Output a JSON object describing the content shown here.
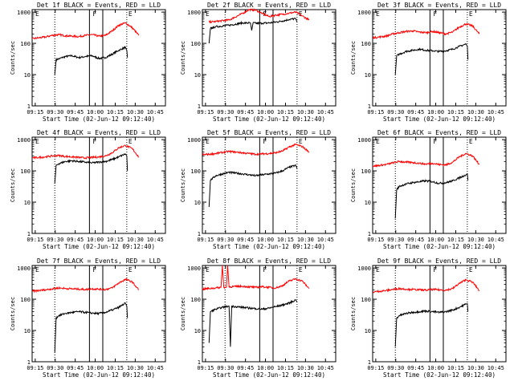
{
  "colors": {
    "events": "#000000",
    "lld": "#ff0000",
    "axis": "#000000",
    "background": "#ffffff"
  },
  "common": {
    "x_label": "Start Time (02-Jun-12 09:12:40)",
    "y_label": "Counts/sec",
    "x_ticks": [
      "09:15",
      "09:30",
      "09:45",
      "10:00",
      "10:15",
      "10:30",
      "10:45"
    ],
    "y_ticks": [
      "1",
      "10",
      "100",
      "1000"
    ],
    "markers": [
      "E",
      "F",
      "E"
    ]
  },
  "chart_data": [
    {
      "type": "line",
      "title": "Det 1f BLACK = Events, RED = LLD",
      "x_unit": "minutes after 09:12:40",
      "xlim": [
        0,
        100
      ],
      "ylim": [
        1,
        1200
      ],
      "y_scale": "log",
      "vlines_dotted": [
        17,
        71
      ],
      "vlines_solid": [
        43,
        53
      ],
      "series": [
        {
          "name": "Events",
          "color": "#000000",
          "x": [
            17,
            18,
            20,
            25,
            30,
            35,
            40,
            45,
            50,
            55,
            60,
            65,
            70,
            71,
            71.5
          ],
          "y": [
            10,
            30,
            32,
            38,
            40,
            35,
            38,
            40,
            33,
            35,
            45,
            60,
            75,
            60,
            35
          ]
        },
        {
          "name": "LLD",
          "color": "#ff0000",
          "x": [
            0,
            5,
            10,
            15,
            20,
            25,
            30,
            35,
            40,
            45,
            50,
            55,
            60,
            65,
            70,
            75,
            80
          ],
          "y": [
            140,
            150,
            160,
            180,
            190,
            175,
            170,
            165,
            180,
            190,
            170,
            180,
            250,
            380,
            450,
            320,
            180
          ]
        }
      ]
    },
    {
      "type": "line",
      "title": "Det 2f BLACK = Events, RED = LLD",
      "x_unit": "minutes after 09:12:40",
      "xlim": [
        0,
        100
      ],
      "ylim": [
        1,
        1200
      ],
      "y_scale": "log",
      "vlines_dotted": [
        17,
        71
      ],
      "vlines_solid": [
        43,
        53
      ],
      "series": [
        {
          "name": "Events",
          "color": "#000000",
          "x": [
            5,
            6,
            10,
            20,
            30,
            36,
            37,
            38,
            40,
            45,
            50,
            55,
            60,
            65,
            70,
            71
          ],
          "y": [
            100,
            300,
            340,
            380,
            450,
            450,
            260,
            450,
            440,
            440,
            450,
            480,
            520,
            580,
            620,
            480
          ]
        },
        {
          "name": "LLD",
          "color": "#ff0000",
          "x": [
            5,
            10,
            20,
            30,
            35,
            40,
            45,
            50,
            55,
            60,
            65,
            70,
            75,
            80
          ],
          "y": [
            480,
            500,
            560,
            900,
            1200,
            1150,
            900,
            720,
            800,
            850,
            920,
            1000,
            750,
            560
          ]
        }
      ]
    },
    {
      "type": "line",
      "title": "Det 3f BLACK = Events, RED = LLD",
      "x_unit": "minutes after 09:12:40",
      "xlim": [
        0,
        100
      ],
      "ylim": [
        1,
        1200
      ],
      "y_scale": "log",
      "vlines_dotted": [
        17,
        71
      ],
      "vlines_solid": [
        43,
        53
      ],
      "series": [
        {
          "name": "Events",
          "color": "#000000",
          "x": [
            17,
            18,
            20,
            25,
            30,
            35,
            40,
            45,
            50,
            55,
            60,
            65,
            70,
            71,
            71.5
          ],
          "y": [
            10,
            40,
            45,
            55,
            60,
            65,
            60,
            58,
            55,
            58,
            65,
            80,
            95,
            80,
            30
          ]
        },
        {
          "name": "LLD",
          "color": "#ff0000",
          "x": [
            0,
            5,
            10,
            15,
            20,
            25,
            30,
            35,
            40,
            45,
            50,
            55,
            60,
            65,
            70,
            75,
            80
          ],
          "y": [
            150,
            160,
            170,
            200,
            220,
            240,
            250,
            230,
            220,
            240,
            220,
            200,
            230,
            330,
            420,
            360,
            200
          ]
        }
      ]
    },
    {
      "type": "line",
      "title": "Det 4f BLACK = Events, RED = LLD",
      "x_unit": "minutes after 09:12:40",
      "xlim": [
        0,
        100
      ],
      "ylim": [
        1,
        1200
      ],
      "y_scale": "log",
      "vlines_dotted": [
        17,
        71
      ],
      "vlines_solid": [
        43,
        53
      ],
      "series": [
        {
          "name": "Events",
          "color": "#000000",
          "x": [
            17,
            18,
            20,
            25,
            30,
            35,
            40,
            45,
            50,
            55,
            60,
            65,
            70,
            71,
            71.5
          ],
          "y": [
            40,
            150,
            170,
            200,
            210,
            200,
            190,
            180,
            190,
            200,
            230,
            280,
            350,
            300,
            100
          ]
        },
        {
          "name": "LLD",
          "color": "#ff0000",
          "x": [
            0,
            5,
            10,
            15,
            20,
            25,
            30,
            35,
            40,
            45,
            50,
            55,
            60,
            65,
            70,
            75,
            80
          ],
          "y": [
            260,
            270,
            280,
            300,
            310,
            290,
            280,
            270,
            260,
            270,
            280,
            300,
            380,
            550,
            650,
            520,
            280
          ]
        }
      ]
    },
    {
      "type": "line",
      "title": "Det 5f BLACK = Events, RED = LLD",
      "x_unit": "minutes after 09:12:40",
      "xlim": [
        0,
        100
      ],
      "ylim": [
        1,
        1200
      ],
      "y_scale": "log",
      "vlines_dotted": [
        17,
        71
      ],
      "vlines_solid": [
        43,
        53
      ],
      "series": [
        {
          "name": "Events",
          "color": "#000000",
          "x": [
            5,
            6,
            10,
            15,
            20,
            25,
            30,
            35,
            40,
            45,
            50,
            55,
            60,
            65,
            70,
            71
          ],
          "y": [
            7,
            50,
            70,
            80,
            90,
            85,
            80,
            75,
            70,
            75,
            80,
            85,
            100,
            130,
            150,
            120
          ]
        },
        {
          "name": "LLD",
          "color": "#ff0000",
          "x": [
            0,
            5,
            10,
            15,
            20,
            25,
            30,
            35,
            40,
            45,
            50,
            55,
            60,
            65,
            70,
            75,
            80
          ],
          "y": [
            330,
            340,
            360,
            390,
            420,
            400,
            380,
            360,
            340,
            350,
            360,
            380,
            430,
            580,
            700,
            600,
            400
          ]
        }
      ]
    },
    {
      "type": "line",
      "title": "Det 6f BLACK = Events, RED = LLD",
      "x_unit": "minutes after 09:12:40",
      "xlim": [
        0,
        100
      ],
      "ylim": [
        1,
        1200
      ],
      "y_scale": "log",
      "vlines_dotted": [
        17,
        71
      ],
      "vlines_solid": [
        43,
        53
      ],
      "series": [
        {
          "name": "Events",
          "color": "#000000",
          "x": [
            17,
            18,
            20,
            25,
            30,
            35,
            40,
            45,
            50,
            55,
            60,
            65,
            70,
            71,
            71.5
          ],
          "y": [
            3,
            25,
            32,
            38,
            42,
            45,
            48,
            45,
            40,
            42,
            48,
            60,
            75,
            80,
            50
          ]
        },
        {
          "name": "LLD",
          "color": "#ff0000",
          "x": [
            0,
            5,
            10,
            15,
            20,
            25,
            30,
            35,
            40,
            45,
            50,
            55,
            60,
            65,
            70,
            75,
            80
          ],
          "y": [
            140,
            150,
            160,
            180,
            200,
            190,
            185,
            175,
            165,
            175,
            160,
            155,
            190,
            280,
            360,
            300,
            160
          ]
        }
      ]
    },
    {
      "type": "line",
      "title": "Det 7f BLACK = Events, RED = LLD",
      "x_unit": "minutes after 09:12:40",
      "xlim": [
        0,
        100
      ],
      "ylim": [
        1,
        1200
      ],
      "y_scale": "log",
      "vlines_dotted": [
        17,
        71
      ],
      "vlines_solid": [
        43,
        53
      ],
      "series": [
        {
          "name": "Events",
          "color": "#000000",
          "x": [
            17,
            18,
            20,
            25,
            30,
            35,
            40,
            45,
            50,
            55,
            60,
            65,
            70,
            71,
            71.5
          ],
          "y": [
            2,
            25,
            30,
            35,
            38,
            40,
            38,
            36,
            35,
            38,
            45,
            55,
            75,
            60,
            25
          ]
        },
        {
          "name": "LLD",
          "color": "#ff0000",
          "x": [
            0,
            5,
            10,
            15,
            20,
            25,
            30,
            35,
            40,
            45,
            50,
            55,
            60,
            65,
            70,
            75,
            80
          ],
          "y": [
            180,
            190,
            200,
            215,
            230,
            220,
            215,
            210,
            205,
            215,
            210,
            205,
            230,
            330,
            430,
            360,
            200
          ]
        }
      ]
    },
    {
      "type": "line",
      "title": "Det 8f BLACK = Events, RED = LLD",
      "x_unit": "minutes after 09:12:40",
      "xlim": [
        0,
        100
      ],
      "ylim": [
        1,
        1200
      ],
      "y_scale": "log",
      "vlines_dotted": [
        17,
        71
      ],
      "vlines_solid": [
        43,
        53
      ],
      "series": [
        {
          "name": "Events",
          "color": "#000000",
          "x": [
            5,
            6,
            10,
            15,
            20,
            21,
            22,
            25,
            30,
            35,
            40,
            45,
            50,
            55,
            60,
            65,
            70,
            71
          ],
          "y": [
            4,
            40,
            48,
            55,
            60,
            3,
            60,
            58,
            55,
            52,
            50,
            48,
            52,
            58,
            65,
            75,
            95,
            80
          ]
        },
        {
          "name": "LLD",
          "color": "#ff0000",
          "x": [
            0,
            5,
            10,
            14,
            15,
            16,
            18,
            19,
            20,
            25,
            30,
            35,
            40,
            45,
            50,
            55,
            60,
            65,
            70,
            75,
            80
          ],
          "y": [
            210,
            220,
            230,
            240,
            1200,
            240,
            240,
            1200,
            250,
            255,
            260,
            250,
            240,
            250,
            240,
            230,
            270,
            380,
            450,
            380,
            220
          ]
        }
      ]
    },
    {
      "type": "line",
      "title": "Det 9f BLACK = Events, RED = LLD",
      "x_unit": "minutes after 09:12:40",
      "xlim": [
        0,
        100
      ],
      "ylim": [
        1,
        1200
      ],
      "y_scale": "log",
      "vlines_dotted": [
        17,
        71
      ],
      "vlines_solid": [
        43,
        53
      ],
      "series": [
        {
          "name": "Events",
          "color": "#000000",
          "x": [
            17,
            18,
            20,
            25,
            30,
            35,
            40,
            45,
            50,
            55,
            60,
            65,
            70,
            71,
            71.5
          ],
          "y": [
            3,
            25,
            30,
            35,
            38,
            40,
            42,
            40,
            38,
            40,
            45,
            55,
            70,
            72,
            40
          ]
        },
        {
          "name": "LLD",
          "color": "#ff0000",
          "x": [
            0,
            5,
            10,
            15,
            20,
            25,
            30,
            35,
            40,
            45,
            50,
            55,
            60,
            65,
            70,
            75,
            80
          ],
          "y": [
            170,
            180,
            190,
            205,
            220,
            210,
            205,
            200,
            195,
            205,
            200,
            195,
            220,
            320,
            420,
            350,
            190
          ]
        }
      ]
    }
  ]
}
